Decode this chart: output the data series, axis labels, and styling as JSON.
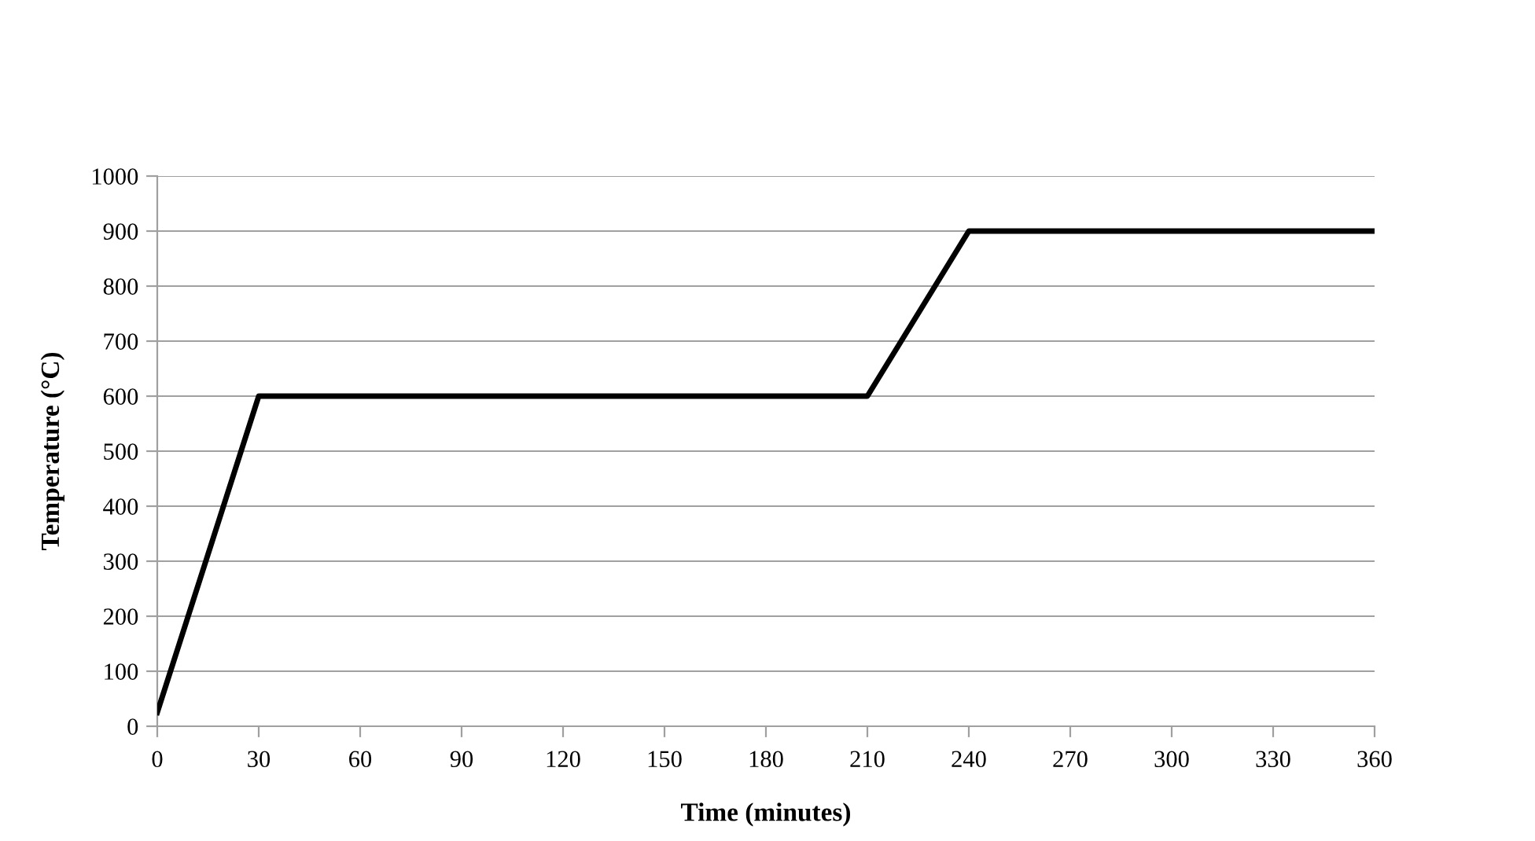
{
  "chart_data": {
    "type": "line",
    "xlabel": "Time (minutes)",
    "ylabel": "Temperature (°C)",
    "x": [
      0,
      30,
      210,
      240,
      360
    ],
    "series": [
      {
        "color": "#000000",
        "values": [
          25,
          600,
          600,
          900,
          900
        ]
      }
    ],
    "xlim": [
      0,
      360
    ],
    "xticks": [
      0,
      30,
      60,
      90,
      120,
      150,
      180,
      210,
      240,
      270,
      300,
      330,
      360
    ],
    "ylim": [
      0,
      1000
    ],
    "yticks": [
      0,
      100,
      200,
      300,
      400,
      500,
      600,
      700,
      800,
      900,
      1000
    ],
    "grid": "y",
    "marker": "none",
    "line_style": "solid",
    "legend": false
  }
}
